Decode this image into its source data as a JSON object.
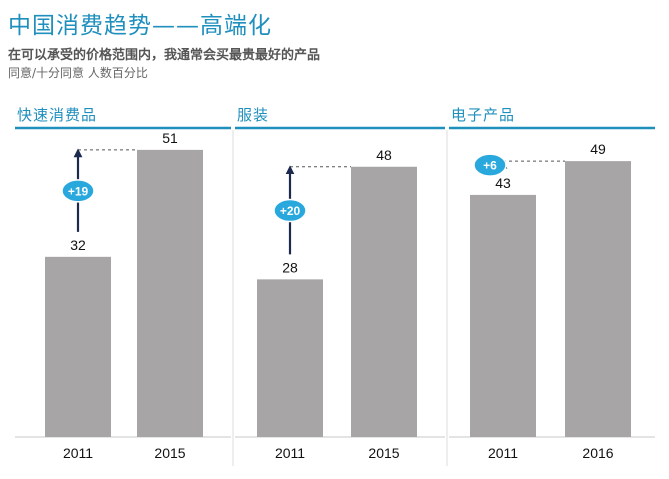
{
  "header": {
    "title": "中国消费趋势——高端化",
    "subtitle": "在可以承受的价格范围内，我通常会买最贵最好的产品",
    "note": "同意/十分同意 人数百分比"
  },
  "colors": {
    "accent": "#1f8fbe",
    "bar": "#a8a5a6",
    "arrow": "#1b2a4e",
    "badge": "#29a8de"
  },
  "chart_data": [
    {
      "type": "bar",
      "title": "快速消费品",
      "categories": [
        "2011",
        "2015"
      ],
      "values": [
        32,
        51
      ],
      "change_label": "+19",
      "ylim": [
        0,
        60
      ]
    },
    {
      "type": "bar",
      "title": "服装",
      "categories": [
        "2011",
        "2015"
      ],
      "values": [
        28,
        48
      ],
      "change_label": "+20",
      "ylim": [
        0,
        60
      ]
    },
    {
      "type": "bar",
      "title": "电子产品",
      "categories": [
        "2011",
        "2016"
      ],
      "values": [
        43,
        49
      ],
      "change_label": "+6",
      "ylim": [
        0,
        60
      ]
    }
  ]
}
